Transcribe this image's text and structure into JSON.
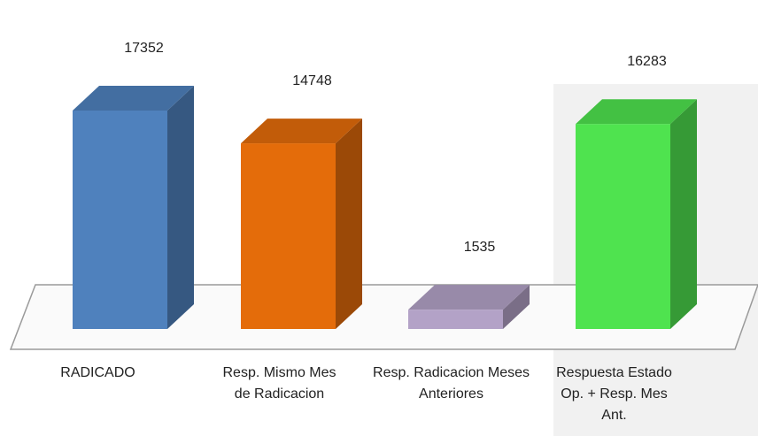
{
  "chart_data": {
    "type": "bar3d",
    "categories": [
      "RADICADO",
      "Resp. Mismo Mes de Radicacion",
      "Resp. Radicacion Meses Anteriores",
      "Respuesta Estado Op. + Resp. Mes Ant."
    ],
    "values": [
      17352,
      14748,
      1535,
      16283
    ],
    "colors": [
      "#4f81bd",
      "#e46c0a",
      "#b3a2c7",
      "#4fe34f"
    ]
  }
}
